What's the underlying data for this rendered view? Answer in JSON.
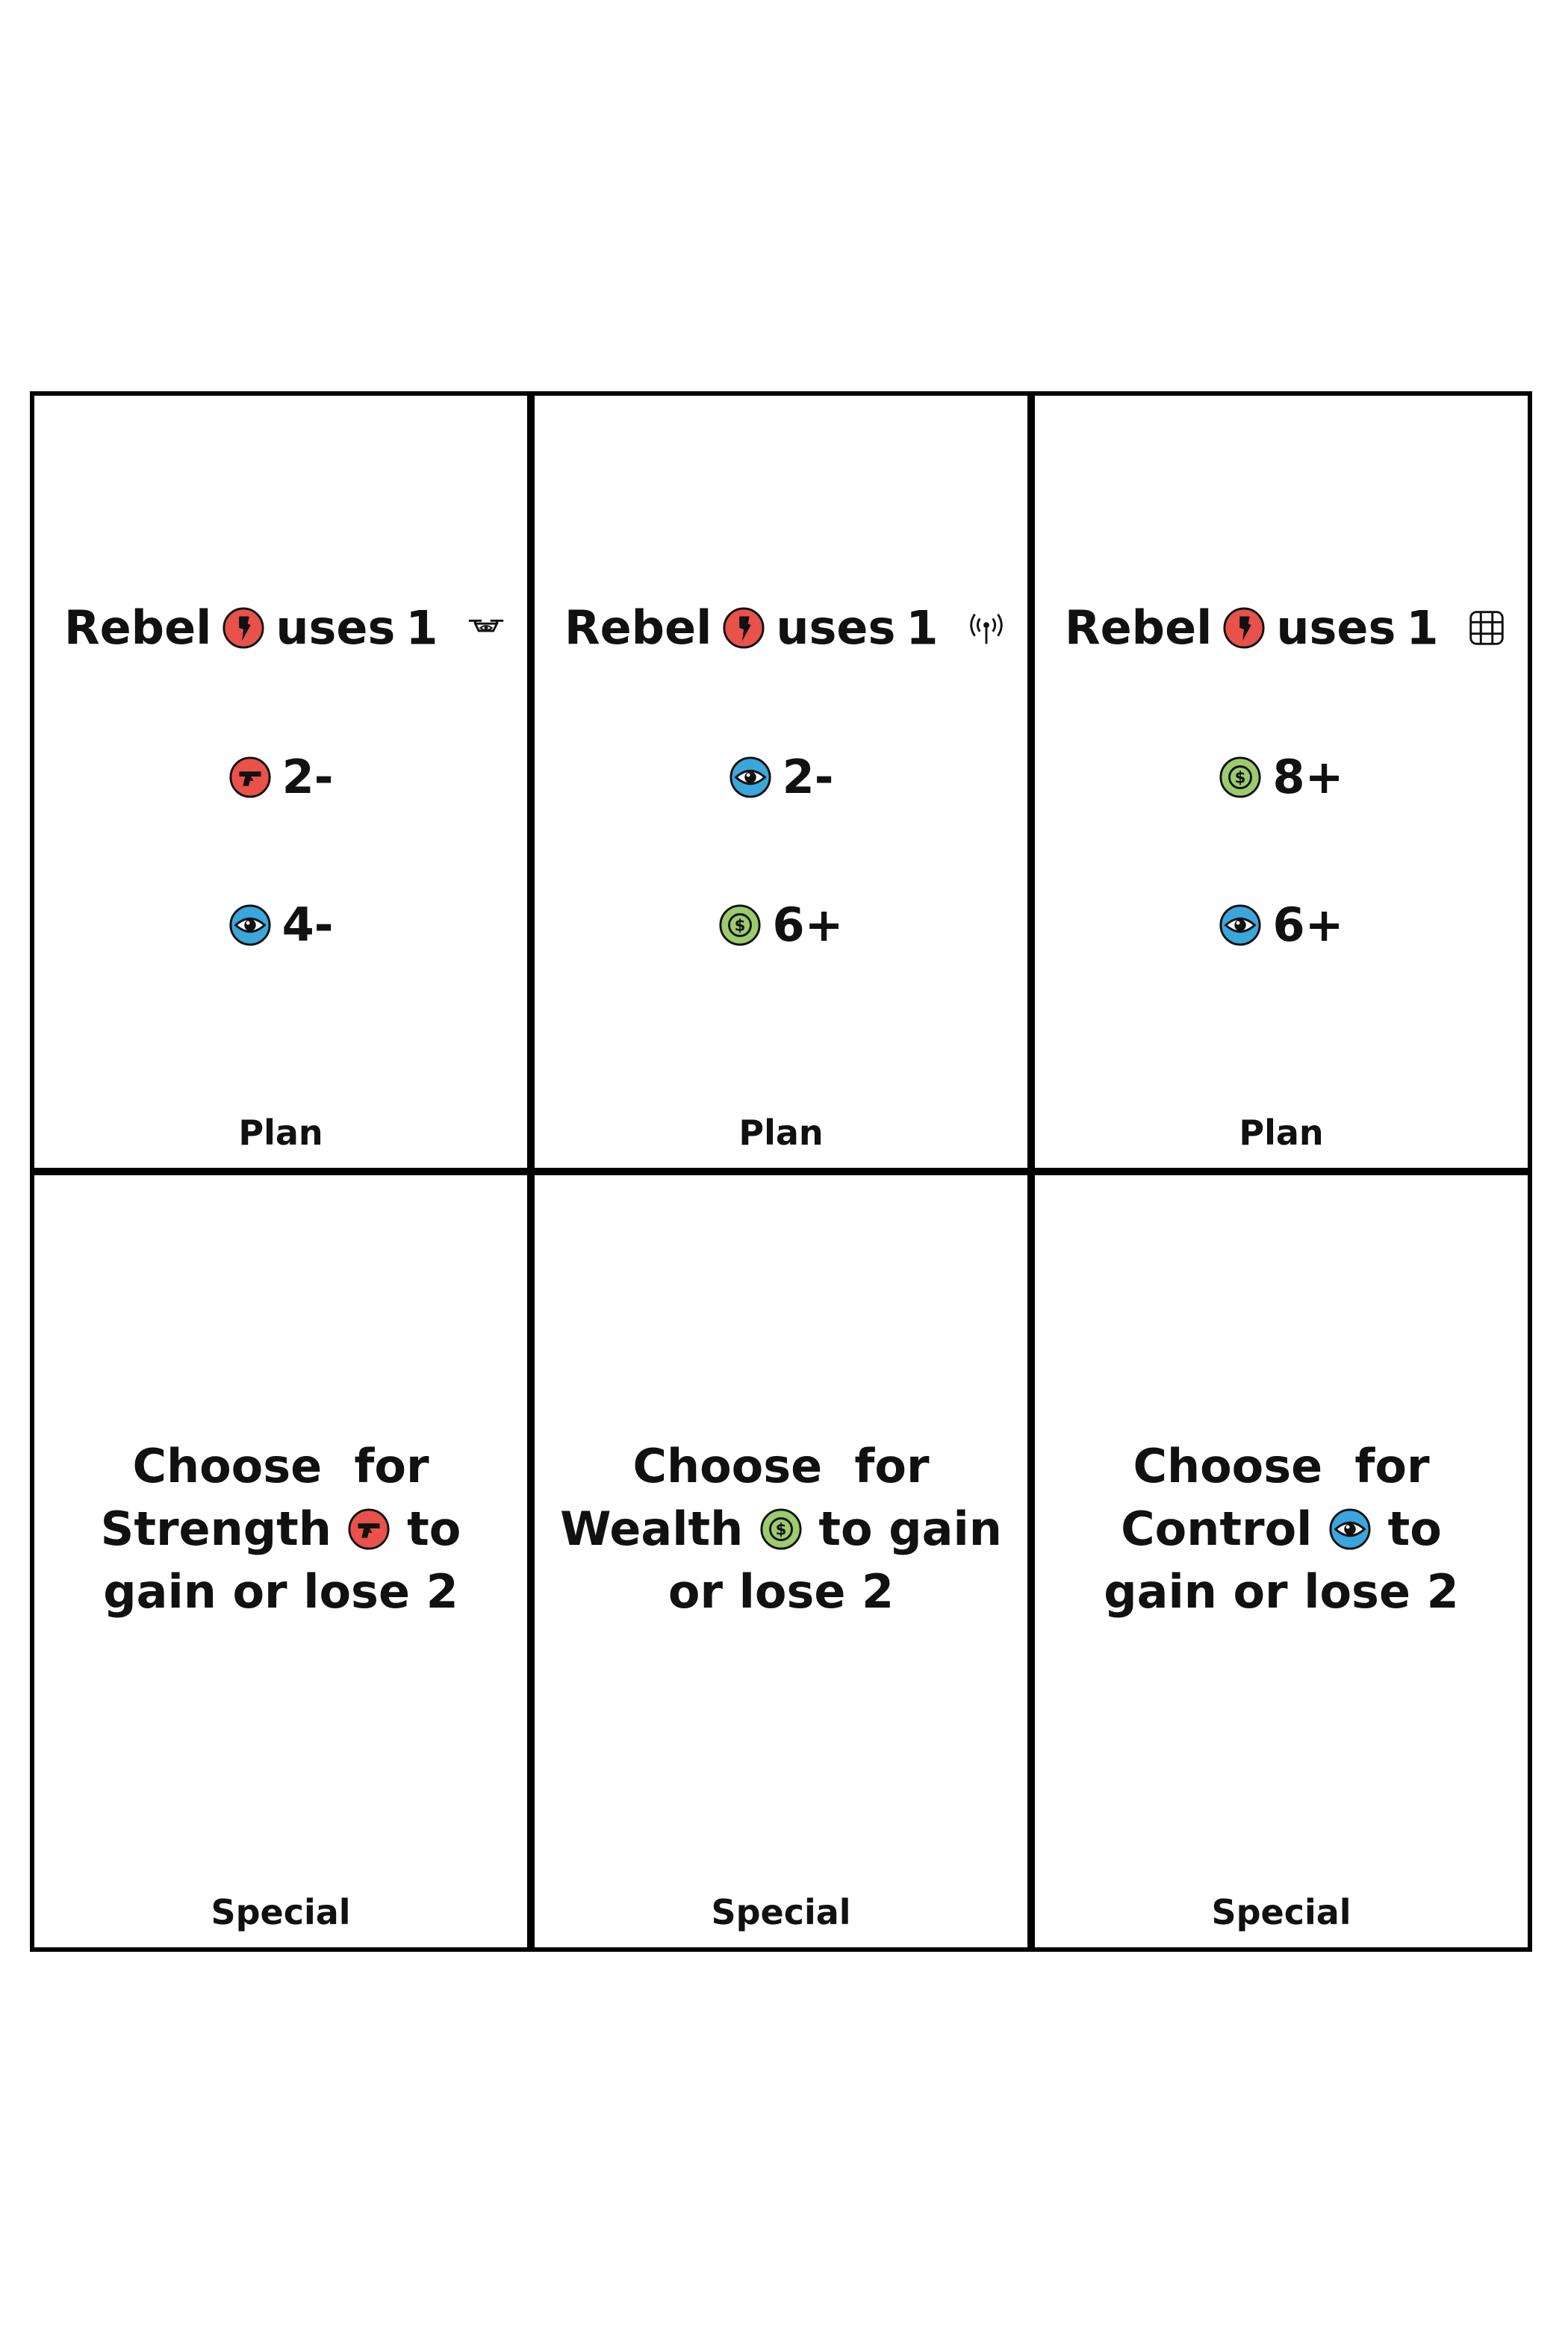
{
  "colors": {
    "strength": "#e8524a",
    "control": "#3aa6dc",
    "wealth": "#9ccb6e",
    "border": "#000000"
  },
  "cards": [
    {
      "rebel_label": "Rebel",
      "uses_label": "uses",
      "uses_count": "1",
      "uses_icon": "drone-icon",
      "requirements": [
        {
          "icon": "strength-gun-icon",
          "value": "2-"
        },
        {
          "icon": "control-eye-icon",
          "value": "4-"
        }
      ],
      "footer": "Plan"
    },
    {
      "rebel_label": "Rebel",
      "uses_label": "uses",
      "uses_count": "1",
      "uses_icon": "radio-broadcast-icon",
      "requirements": [
        {
          "icon": "control-eye-icon",
          "value": "2-"
        },
        {
          "icon": "wealth-dollar-icon",
          "value": "6+"
        }
      ],
      "footer": "Plan"
    },
    {
      "rebel_label": "Rebel",
      "uses_label": "uses",
      "uses_count": "1",
      "uses_icon": "chip-card-icon",
      "requirements": [
        {
          "icon": "wealth-dollar-icon",
          "value": "8+"
        },
        {
          "icon": "control-eye-icon",
          "value": "6+"
        }
      ],
      "footer": "Plan"
    },
    {
      "text_before": "Choose  for Strength",
      "icon": "strength-gun-icon",
      "text_after": "to gain or lose 2",
      "footer": "Special"
    },
    {
      "text_before": "Choose  for Wealth",
      "icon": "wealth-dollar-icon",
      "text_after": "to gain or lose 2",
      "footer": "Special"
    },
    {
      "text_before": "Choose  for Control",
      "icon": "control-eye-icon",
      "text_after": "to gain or lose 2",
      "footer": "Special"
    }
  ]
}
